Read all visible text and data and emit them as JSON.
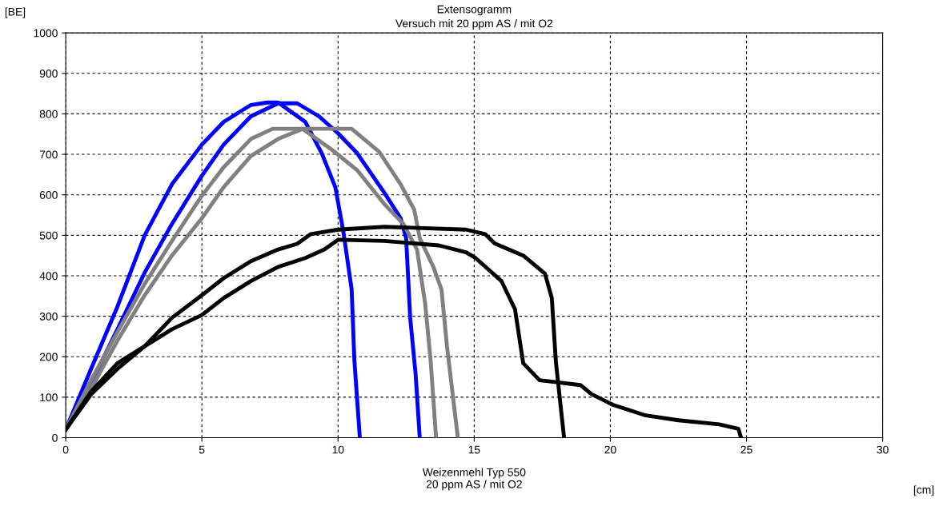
{
  "chart_data": {
    "type": "line",
    "title": "Extensogramm",
    "subtitle": "Versuch mit 20 ppm AS / mit O2",
    "xlabel": "[cm]",
    "ylabel": "[BE]",
    "annotations": [
      "Weizenmehl Typ 550",
      "20 ppm AS / mit O2"
    ],
    "xlim": [
      0,
      30
    ],
    "xticks": [
      0,
      5,
      10,
      15,
      20,
      25,
      30
    ],
    "ylim": [
      0,
      1000
    ],
    "yticks": [
      0,
      100,
      200,
      300,
      400,
      500,
      600,
      700,
      800,
      900,
      1000
    ],
    "grid": true,
    "line_style": "solid",
    "marker": "none",
    "series": [
      {
        "color": "#0000ff",
        "x": [
          0,
          0.93,
          1.9,
          2.9,
          3.9,
          5,
          5.8,
          6.8,
          7.4,
          7.8,
          8.8,
          9.4,
          9.9,
          10.2,
          10.5,
          10.6,
          10.8
        ],
        "values": [
          20,
          170,
          324,
          500,
          626,
          724,
          780,
          822,
          828,
          828,
          780,
          703,
          619,
          507,
          366,
          191,
          0
        ]
      },
      {
        "color": "#0000ff",
        "x": [
          0,
          0.93,
          1.9,
          2.9,
          3.9,
          5,
          5.8,
          6.8,
          7.8,
          8.5,
          9.3,
          10,
          10.7,
          11.7,
          12.3,
          12.5,
          12.65,
          12.85,
          13.0
        ],
        "values": [
          20,
          135,
          268,
          408,
          528,
          647,
          724,
          794,
          826,
          826,
          794,
          752,
          703,
          605,
          542,
          493,
          296,
          156,
          0
        ]
      },
      {
        "color": "#808080",
        "x": [
          0,
          0.93,
          1.9,
          2.9,
          3.9,
          5,
          5.8,
          6.8,
          7.6,
          10.5,
          11.5,
          12.3,
          12.8,
          13.0,
          13.5,
          13.8,
          14.0,
          14.4
        ],
        "values": [
          20,
          142,
          261,
          380,
          486,
          598,
          668,
          738,
          763,
          763,
          707,
          626,
          563,
          493,
          422,
          366,
          226,
          0
        ]
      },
      {
        "color": "#808080",
        "x": [
          0,
          0.93,
          1.9,
          2.9,
          3.9,
          5,
          5.8,
          6.8,
          7.8,
          8.7,
          9.8,
          10.7,
          11.7,
          12.4,
          12.9,
          13.2,
          13.4,
          13.6
        ],
        "values": [
          20,
          121,
          240,
          352,
          450,
          542,
          619,
          696,
          738,
          763,
          710,
          661,
          577,
          528,
          465,
          331,
          191,
          0
        ]
      },
      {
        "color": "#000000",
        "x": [
          0,
          0.93,
          1.9,
          2.9,
          3.9,
          5,
          5.8,
          6.8,
          7.8,
          8.5,
          9.0,
          10,
          11.7,
          14.7,
          15.4,
          15.75,
          16.8,
          17.6,
          17.85,
          18.0,
          18.3
        ],
        "values": [
          20,
          114,
          184,
          226,
          296,
          352,
          394,
          436,
          465,
          479,
          503,
          514,
          521,
          514,
          503,
          480,
          450,
          405,
          345,
          187,
          0
        ]
      },
      {
        "color": "#000000",
        "x": [
          0,
          0.93,
          1.9,
          2.9,
          3.9,
          5,
          5.8,
          6.8,
          7.8,
          8.8,
          9.5,
          10,
          11.7,
          13.7,
          14.7,
          15.05,
          16.0,
          16.5,
          16.8,
          17.4,
          17.9,
          18.9,
          19.3,
          20.1,
          21.3,
          22.5,
          24.0,
          24.7,
          24.8
        ],
        "values": [
          20,
          107,
          170,
          226,
          268,
          303,
          345,
          387,
          422,
          444,
          465,
          489,
          486,
          475,
          458,
          444,
          387,
          317,
          184,
          142,
          138,
          130,
          108,
          81,
          55,
          43,
          33,
          22,
          0
        ]
      }
    ]
  }
}
